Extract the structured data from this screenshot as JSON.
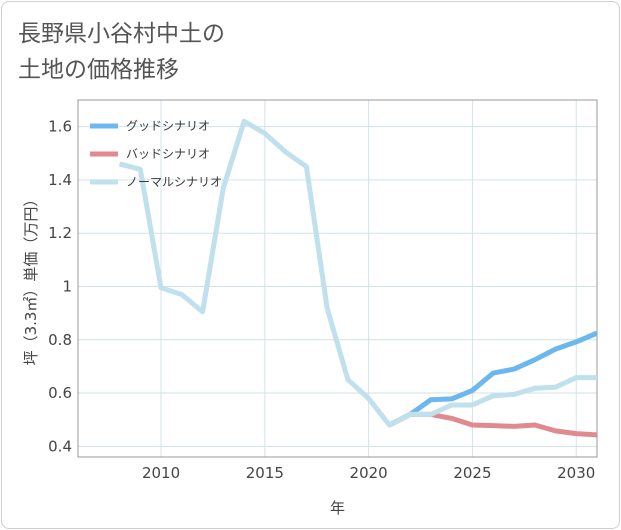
{
  "chart_data": {
    "type": "line",
    "title_lines": [
      "長野県小谷村中土の",
      "土地の価格推移"
    ],
    "xlabel": "年",
    "ylabel": "坪（3.3㎡）単価（万円）",
    "xlim": [
      2006,
      2031
    ],
    "ylim": [
      0.36,
      1.7
    ],
    "x_ticks": [
      2010,
      2015,
      2020,
      2025,
      2030
    ],
    "y_ticks": [
      0.4,
      0.6,
      0.8,
      1,
      1.2,
      1.4,
      1.6
    ],
    "grid": true,
    "legend_position": "top-left",
    "series": [
      {
        "name": "グッドシナリオ",
        "color": "#6cb8ee",
        "x": [
          2021,
          2022,
          2023,
          2024,
          2025,
          2026,
          2027,
          2028,
          2029,
          2030,
          2031
        ],
        "values": [
          0.48,
          0.52,
          0.575,
          0.578,
          0.61,
          0.675,
          0.69,
          0.725,
          0.765,
          0.792,
          0.825
        ]
      },
      {
        "name": "バッドシナリオ",
        "color": "#e08a90",
        "x": [
          2021,
          2022,
          2023,
          2024,
          2025,
          2026,
          2027,
          2028,
          2029,
          2030,
          2031
        ],
        "values": [
          0.48,
          0.52,
          0.52,
          0.505,
          0.48,
          0.478,
          0.475,
          0.48,
          0.458,
          0.448,
          0.443
        ]
      },
      {
        "name": "ノーマルシナリオ",
        "color": "#bfe0ec",
        "x": [
          2008,
          2009,
          2010,
          2011,
          2012,
          2013,
          2014,
          2015,
          2016,
          2017,
          2018,
          2019,
          2020,
          2021,
          2022,
          2023,
          2024,
          2025,
          2026,
          2027,
          2028,
          2029,
          2030,
          2031
        ],
        "values": [
          1.46,
          1.44,
          0.995,
          0.97,
          0.905,
          1.37,
          1.62,
          1.575,
          1.505,
          1.45,
          0.92,
          0.65,
          0.58,
          0.48,
          0.52,
          0.52,
          0.555,
          0.555,
          0.59,
          0.595,
          0.618,
          0.622,
          0.658,
          0.658
        ]
      }
    ]
  }
}
